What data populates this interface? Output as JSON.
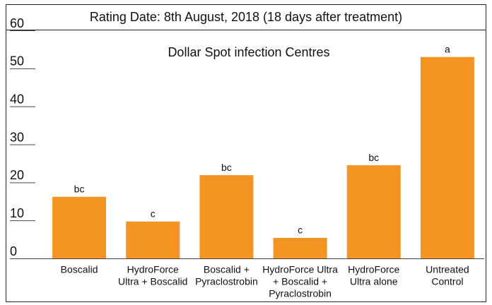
{
  "chart_data": {
    "type": "bar",
    "title": "Rating Date: 8th August, 2018 (18 days after treatment)",
    "subtitle": "Dollar Spot infection Centres",
    "categories": [
      [
        "Boscalid"
      ],
      [
        "HydroForce",
        "Ultra + Boscalid"
      ],
      [
        "Boscalid +",
        "Pyraclostrobin"
      ],
      [
        "HydroForce Ultra",
        "+ Boscalid +",
        "Pyraclostrobin"
      ],
      [
        "HydroForce",
        "Ultra alone"
      ],
      [
        "Untreated",
        "Control"
      ]
    ],
    "values": [
      16.2,
      9.7,
      21.9,
      5.4,
      24.5,
      53.0
    ],
    "annotations": [
      "bc",
      "c",
      "bc",
      "c",
      "bc",
      "a"
    ],
    "color": "#f39423",
    "ylim": [
      0,
      60
    ],
    "yticks": [
      0,
      10,
      20,
      30,
      40,
      50,
      60
    ],
    "grid": false
  }
}
